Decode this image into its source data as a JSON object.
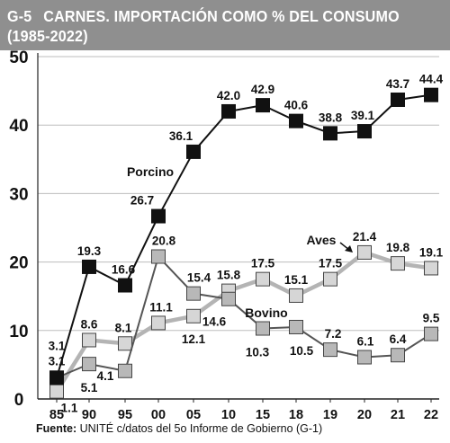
{
  "header": {
    "code": "G-5",
    "title": "CARNES. IMPORTACIÓN COMO % DEL CONSUMO",
    "subtitle": "(1985-2022)"
  },
  "source": {
    "label": "Fuente:",
    "text": " UNITÉ c/datos del 5o Informe de Gobierno (G-1)"
  },
  "chart_data": {
    "type": "line",
    "title": "CARNES. IMPORTACIÓN COMO % DEL CONSUMO",
    "subtitle": "(1985-2022)",
    "xlabel": "",
    "ylabel": "",
    "categories": [
      "85",
      "90",
      "95",
      "00",
      "05",
      "10",
      "15",
      "18",
      "19",
      "20",
      "21",
      "22"
    ],
    "yticks": [
      "0",
      "10",
      "20",
      "30",
      "40",
      "50"
    ],
    "ylim": [
      0,
      50
    ],
    "grid": "horizontal",
    "series": [
      {
        "name": "Porcino",
        "marker": "square-black",
        "color": "#111111",
        "values": [
          3.1,
          19.3,
          16.6,
          26.7,
          36.1,
          42.0,
          42.9,
          40.6,
          38.8,
          39.1,
          43.7,
          44.4
        ],
        "labels": [
          "3.1",
          "19.3",
          "16.6",
          "26.7",
          "36.1",
          "42.0",
          "42.9",
          "40.6",
          "38.8",
          "39.1",
          "43.7",
          "44.4"
        ]
      },
      {
        "name": "Aves",
        "marker": "square-lightgray",
        "color": "#b4b4b4",
        "values": [
          1.1,
          8.6,
          8.1,
          11.1,
          12.1,
          15.8,
          17.5,
          15.1,
          17.5,
          21.4,
          19.8,
          19.1
        ],
        "labels": [
          "1.1",
          "8.6",
          "8.1",
          "11.1",
          "12.1",
          "15.8",
          "17.5",
          "15.1",
          "17.5",
          "21.4",
          "19.8",
          "19.1"
        ]
      },
      {
        "name": "Bovino",
        "marker": "square-gray",
        "color": "#555555",
        "values": [
          3.1,
          5.1,
          4.1,
          20.8,
          15.4,
          14.6,
          10.3,
          10.5,
          7.2,
          6.1,
          6.4,
          9.5
        ],
        "labels": [
          "3.1",
          "5.1",
          "4.1",
          "20.8",
          "15.4",
          "14.6",
          "10.3",
          "10.5",
          "7.2",
          "6.1",
          "6.4",
          "9.5"
        ]
      }
    ]
  }
}
